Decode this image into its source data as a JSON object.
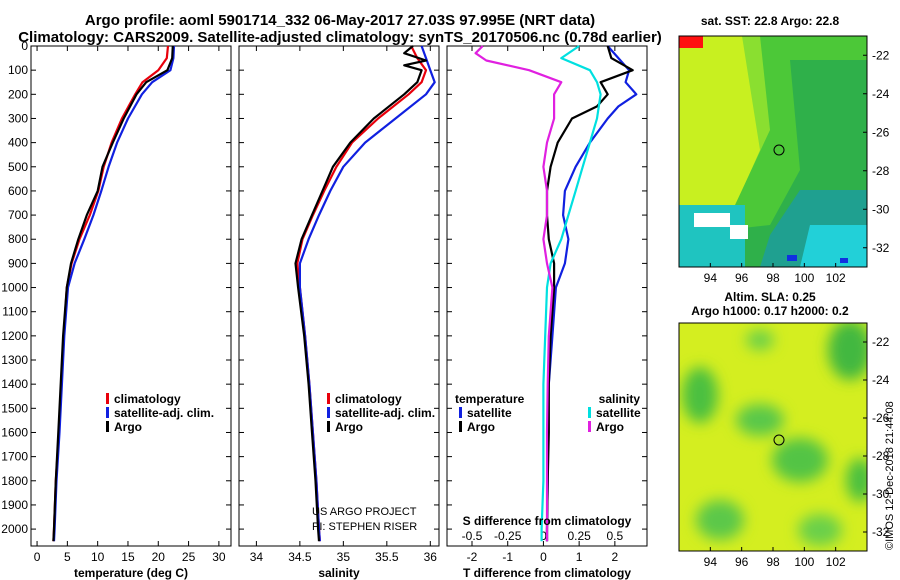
{
  "header": {
    "line1": "Argo profile: aoml 5901714_332 06-May-2017 27.03S 97.995E (NRT data)",
    "line2": "Climatology: CARS2009. Satellite-adjusted climatology: synTS_20170506.nc (0.78d earlier)"
  },
  "chart_data": [
    {
      "type": "line",
      "id": "temperature",
      "xlabel": "temperature (deg C)",
      "ylabel": "",
      "xlim": [
        -1,
        32
      ],
      "ylim": [
        2070,
        0
      ],
      "invert_y": true,
      "xticks": [
        "0",
        "5",
        "10",
        "15",
        "20",
        "25",
        "30"
      ],
      "yticks": [
        "0",
        "100",
        "200",
        "300",
        "400",
        "500",
        "600",
        "700",
        "800",
        "900",
        "1000",
        "1100",
        "1200",
        "1300",
        "1400",
        "1500",
        "1600",
        "1700",
        "1800",
        "1900",
        "2000"
      ],
      "legend": [
        {
          "label": "climatology",
          "color": "#e8000b"
        },
        {
          "label": "satellite-adj. clim.",
          "color": "#1020e0"
        },
        {
          "label": "Argo",
          "color": "#000000"
        }
      ],
      "series": [
        {
          "name": "climatology",
          "color": "#e8000b",
          "depth": [
            0,
            50,
            100,
            150,
            200,
            300,
            400,
            500,
            600,
            700,
            800,
            900,
            1000,
            1200,
            1400,
            1600,
            1800,
            2000,
            2050
          ],
          "values": [
            21.6,
            21.4,
            20,
            17.4,
            16.2,
            14,
            12.3,
            11,
            10.1,
            8.7,
            7,
            5.7,
            4.9,
            4.4,
            4,
            3.6,
            3.1,
            2.8,
            2.7
          ]
        },
        {
          "name": "satellite-adj. clim.",
          "color": "#1020e0",
          "depth": [
            0,
            50,
            100,
            150,
            200,
            300,
            400,
            500,
            600,
            700,
            800,
            900,
            1000,
            1200,
            1400,
            1600,
            1800,
            2000,
            2050
          ],
          "values": [
            22.6,
            22.5,
            22,
            19,
            17.3,
            15,
            13.2,
            11.8,
            10.6,
            9.3,
            7.8,
            6.2,
            5.1,
            4.5,
            4.1,
            3.7,
            3.2,
            2.9,
            2.8
          ]
        },
        {
          "name": "Argo",
          "color": "#000000",
          "depth": [
            0,
            50,
            100,
            150,
            200,
            300,
            400,
            500,
            600,
            700,
            800,
            900,
            1000,
            1200,
            1400,
            1600,
            1800,
            2000,
            2050
          ],
          "values": [
            22.4,
            22.3,
            21.5,
            18,
            16.4,
            14.3,
            12.5,
            10.8,
            10,
            8.2,
            6.8,
            5.6,
            4.9,
            4.3,
            3.9,
            3.5,
            3.1,
            2.8,
            2.7
          ]
        }
      ]
    },
    {
      "type": "line",
      "id": "salinity",
      "xlabel": "salinity",
      "ylabel": "",
      "xlim": [
        33.8,
        36.1
      ],
      "ylim": [
        2070,
        0
      ],
      "invert_y": true,
      "xticks": [
        "34",
        "34.5",
        "35",
        "35.5",
        "36"
      ],
      "legend": [
        {
          "label": "climatology",
          "color": "#e8000b"
        },
        {
          "label": "satellite-adj. clim.",
          "color": "#1020e0"
        },
        {
          "label": "Argo",
          "color": "#000000"
        }
      ],
      "annotation": [
        "US ARGO PROJECT",
        "PI: STEPHEN RISER"
      ],
      "series": [
        {
          "name": "climatology",
          "color": "#e8000b",
          "depth": [
            0,
            50,
            100,
            150,
            200,
            300,
            400,
            500,
            600,
            700,
            800,
            900,
            1000,
            1200,
            1400,
            1600,
            1800,
            2000,
            2050
          ],
          "values": [
            35.78,
            35.85,
            35.95,
            35.9,
            35.75,
            35.4,
            35.1,
            34.92,
            34.78,
            34.65,
            34.53,
            34.47,
            34.5,
            34.56,
            34.61,
            34.65,
            34.69,
            34.72,
            34.73
          ]
        },
        {
          "name": "satellite-adj. clim.",
          "color": "#1020e0",
          "depth": [
            0,
            50,
            100,
            150,
            200,
            300,
            400,
            500,
            600,
            700,
            800,
            900,
            1000,
            1200,
            1400,
            1600,
            1800,
            2000,
            2050
          ],
          "values": [
            35.9,
            35.95,
            36.0,
            36.05,
            35.95,
            35.6,
            35.25,
            35.0,
            34.85,
            34.72,
            34.6,
            34.5,
            34.5,
            34.56,
            34.61,
            34.65,
            34.69,
            34.72,
            34.73
          ]
        },
        {
          "name": "Argo",
          "color": "#000000",
          "depth": [
            0,
            30,
            60,
            80,
            100,
            150,
            200,
            300,
            400,
            500,
            600,
            700,
            800,
            900,
            1000,
            1200,
            1400,
            1600,
            1800,
            2000,
            2050
          ],
          "values": [
            35.8,
            35.7,
            35.95,
            35.7,
            35.9,
            35.85,
            35.7,
            35.35,
            35.08,
            34.88,
            34.76,
            34.64,
            34.52,
            34.45,
            34.48,
            34.55,
            34.6,
            34.64,
            34.68,
            34.71,
            34.72
          ]
        }
      ]
    },
    {
      "type": "line",
      "id": "difference",
      "xlabel": "T difference from climatology",
      "xlabel_top": "S difference from climatology",
      "xlim": [
        -2.7,
        2.9
      ],
      "ylim": [
        2070,
        0
      ],
      "invert_y": true,
      "xticks": [
        "-2",
        "-1",
        "0",
        "1",
        "2"
      ],
      "xticks_top": [
        "-0.5",
        "-0.25",
        "0",
        "0.25",
        "0.5"
      ],
      "legend_left_title": "temperature",
      "legend_right_title": "salinity",
      "legend": [
        {
          "label": "satellite",
          "color": "#1020e0",
          "group": "temperature"
        },
        {
          "label": "Argo",
          "color": "#000000",
          "group": "temperature"
        },
        {
          "label": "satellite",
          "color": "#00e0e0",
          "group": "salinity"
        },
        {
          "label": "Argo",
          "color": "#e020e0",
          "group": "salinity"
        }
      ],
      "series": [
        {
          "name": "temperature satellite",
          "color": "#1020e0",
          "depth": [
            0,
            50,
            100,
            150,
            200,
            250,
            300,
            400,
            500,
            600,
            700,
            800,
            900,
            1000,
            1200,
            1400,
            1600,
            1800,
            2000,
            2050
          ],
          "values": [
            1.8,
            2.1,
            2.4,
            2.3,
            2.6,
            2.1,
            1.8,
            1.3,
            0.9,
            0.6,
            0.55,
            0.7,
            0.6,
            0.35,
            0.25,
            0.15,
            0.12,
            0.12,
            0.1,
            0.1
          ]
        },
        {
          "name": "temperature Argo",
          "color": "#000000",
          "depth": [
            0,
            50,
            100,
            150,
            200,
            250,
            300,
            400,
            500,
            600,
            700,
            800,
            900,
            1000,
            1200,
            1400,
            1600,
            1800,
            2000,
            2050
          ],
          "values": [
            1.8,
            1.9,
            2.5,
            1.6,
            1.8,
            1.5,
            0.8,
            0.4,
            0.2,
            0.1,
            0.1,
            0.15,
            0.3,
            0.3,
            0.2,
            0.15,
            0.15,
            0.12,
            0.1,
            0.1
          ]
        },
        {
          "name": "salinity satellite",
          "color": "#00e0e0",
          "depth": [
            0,
            50,
            100,
            150,
            200,
            300,
            400,
            500,
            600,
            700,
            800,
            900,
            1000,
            1200,
            1400,
            1600,
            1800,
            2000,
            2050
          ],
          "values": [
            1.0,
            0.5,
            1.3,
            1.5,
            1.6,
            1.5,
            1.3,
            1.1,
            0.9,
            0.7,
            0.5,
            0.2,
            0.1,
            0.05,
            0.0,
            0.0,
            0.0,
            -0.05,
            -0.05
          ]
        },
        {
          "name": "salinity Argo",
          "color": "#e020e0",
          "depth": [
            0,
            30,
            60,
            100,
            150,
            200,
            300,
            400,
            500,
            600,
            700,
            800,
            900,
            1000,
            1200,
            1400,
            1600,
            1800,
            2000,
            2050
          ],
          "values": [
            -1.7,
            -1.9,
            -1.6,
            -0.4,
            0.5,
            0.3,
            0.3,
            0.1,
            0.0,
            0.1,
            0.1,
            0.0,
            0.1,
            0.25,
            0.15,
            0.12,
            0.1,
            0.1,
            0.1,
            0.1
          ]
        }
      ]
    },
    {
      "type": "heatmap",
      "id": "sst-map",
      "title": "sat. SST: 22.8 Argo: 22.8",
      "xticks": [
        "94",
        "96",
        "98",
        "100",
        "102"
      ],
      "yticks": [
        "-22",
        "-24",
        "-26",
        "-28",
        "-30",
        "-32"
      ],
      "xlim": [
        92,
        104
      ],
      "ylim": [
        -33,
        -21
      ],
      "marker": {
        "lon": 98,
        "lat": -27
      }
    },
    {
      "type": "heatmap",
      "id": "sla-map",
      "title": "Altim. SLA: 0.25",
      "subtitle": "Argo h1000: 0.17 h2000: 0.2",
      "xticks": [
        "94",
        "96",
        "98",
        "100",
        "102"
      ],
      "yticks": [
        "-22",
        "-24",
        "-26",
        "-28",
        "-30",
        "-32"
      ],
      "xlim": [
        92,
        104
      ],
      "ylim": [
        -33,
        -21
      ],
      "marker": {
        "lon": 98,
        "lat": -27
      }
    }
  ],
  "footer": {
    "copyright": "©IMOS 12-Dec-2018 21:44:08"
  }
}
